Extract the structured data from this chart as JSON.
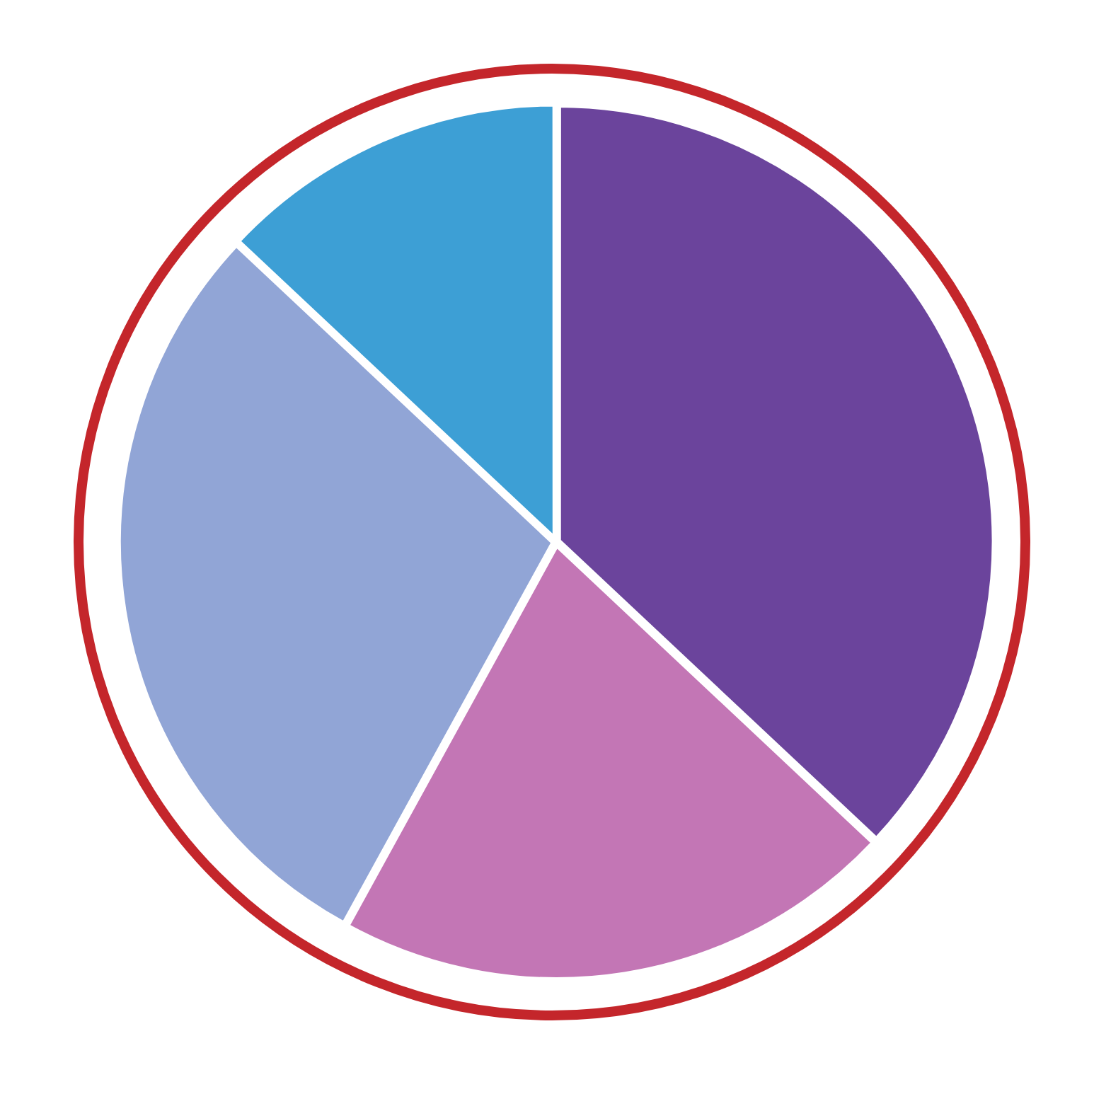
{
  "chart_data": {
    "type": "pie",
    "categories": [
      null,
      null,
      null,
      null
    ],
    "values": [
      37,
      21,
      29,
      13
    ],
    "colors": [
      "#6b449c",
      "#c376b5",
      "#91a5d6",
      "#3d9fd5"
    ],
    "legend": false
  }
}
